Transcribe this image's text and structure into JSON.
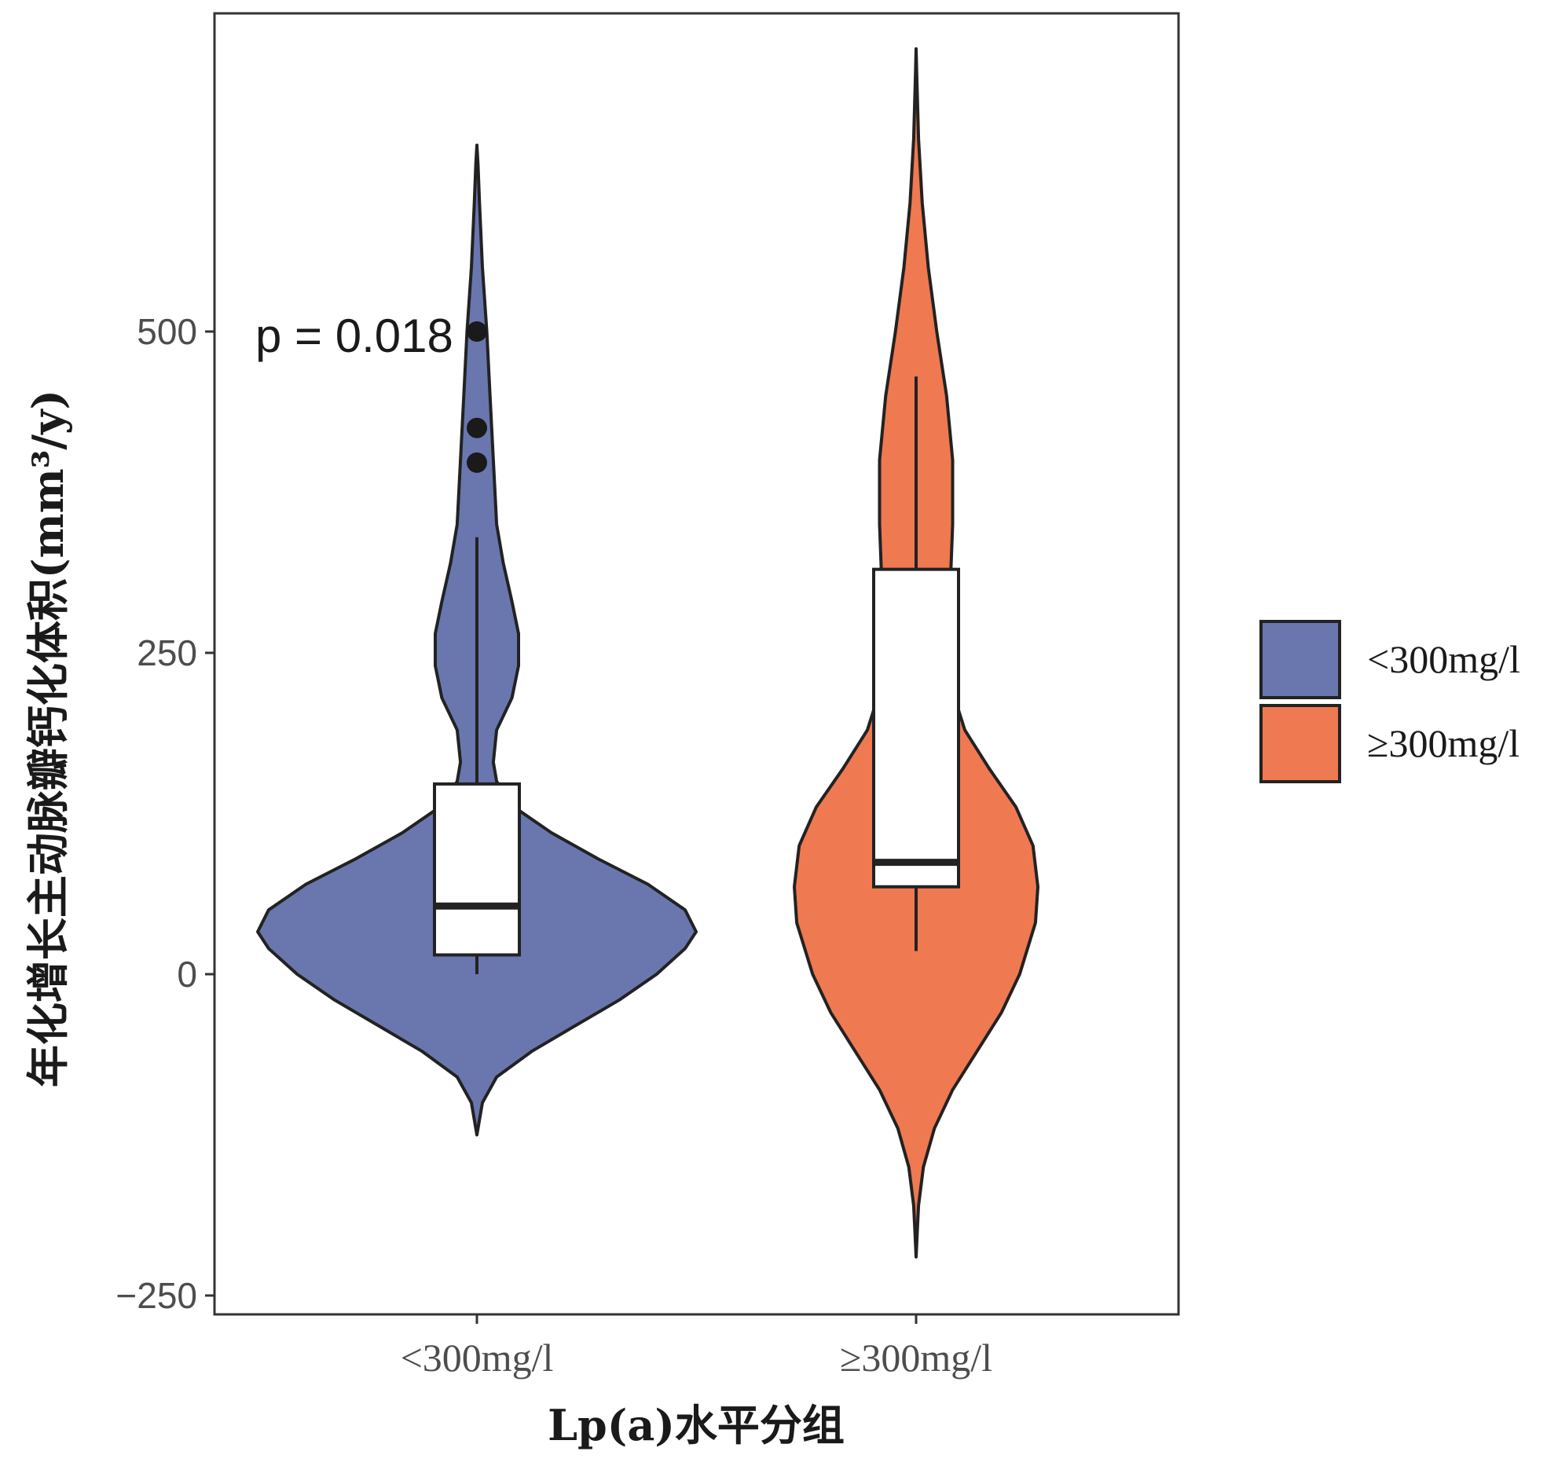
{
  "chart_data": {
    "type": "violin",
    "xlabel": "Lp(a)水平分组",
    "ylabel": "年化增长主动脉瓣钙化体积(mm³/y)",
    "categories": [
      "<300mg/l",
      "≥300mg/l"
    ],
    "yticks": [
      -250,
      0,
      250,
      500
    ],
    "ylim": [
      -270,
      745
    ],
    "grid": false,
    "legend": {
      "placement": "right",
      "entries": [
        "<300mg/l",
        "≥300mg/l"
      ]
    },
    "annotation": "p = 0.018",
    "series": [
      {
        "category": "<300mg/l",
        "color": "#6977ae",
        "box": {
          "whisker_low": 0,
          "q1": 15,
          "median": 53,
          "q3": 148,
          "whisker_high": 340
        },
        "outliers": [
          500,
          425,
          398
        ],
        "violin_profile": [
          [
            -125,
            0.0
          ],
          [
            -115,
            0.01
          ],
          [
            -100,
            0.025
          ],
          [
            -80,
            0.09
          ],
          [
            -60,
            0.25
          ],
          [
            -40,
            0.45
          ],
          [
            -20,
            0.65
          ],
          [
            0,
            0.82
          ],
          [
            20,
            0.95
          ],
          [
            33,
            1.0
          ],
          [
            50,
            0.95
          ],
          [
            70,
            0.78
          ],
          [
            90,
            0.55
          ],
          [
            110,
            0.34
          ],
          [
            130,
            0.17
          ],
          [
            150,
            0.09
          ],
          [
            165,
            0.075
          ],
          [
            190,
            0.09
          ],
          [
            215,
            0.16
          ],
          [
            240,
            0.19
          ],
          [
            265,
            0.19
          ],
          [
            290,
            0.16
          ],
          [
            320,
            0.12
          ],
          [
            350,
            0.09
          ],
          [
            400,
            0.075
          ],
          [
            450,
            0.06
          ],
          [
            500,
            0.045
          ],
          [
            550,
            0.025
          ],
          [
            600,
            0.012
          ],
          [
            630,
            0.005
          ],
          [
            645,
            0.0
          ]
        ]
      },
      {
        "category": "≥300mg/l",
        "color": "#ef7951",
        "box": {
          "whisker_low": 18,
          "q1": 68,
          "median": 87,
          "q3": 315,
          "whisker_high": 465
        },
        "outliers": [],
        "violin_profile": [
          [
            -220,
            0.0
          ],
          [
            -200,
            0.01
          ],
          [
            -180,
            0.02
          ],
          [
            -150,
            0.06
          ],
          [
            -120,
            0.15
          ],
          [
            -90,
            0.3
          ],
          [
            -60,
            0.5
          ],
          [
            -30,
            0.7
          ],
          [
            0,
            0.85
          ],
          [
            40,
            0.98
          ],
          [
            68,
            1.0
          ],
          [
            100,
            0.96
          ],
          [
            130,
            0.82
          ],
          [
            160,
            0.6
          ],
          [
            190,
            0.4
          ],
          [
            220,
            0.3
          ],
          [
            250,
            0.28
          ],
          [
            300,
            0.28
          ],
          [
            350,
            0.3
          ],
          [
            400,
            0.3
          ],
          [
            450,
            0.25
          ],
          [
            500,
            0.17
          ],
          [
            550,
            0.1
          ],
          [
            600,
            0.05
          ],
          [
            650,
            0.02
          ],
          [
            700,
            0.005
          ],
          [
            720,
            0.0
          ]
        ]
      }
    ]
  }
}
